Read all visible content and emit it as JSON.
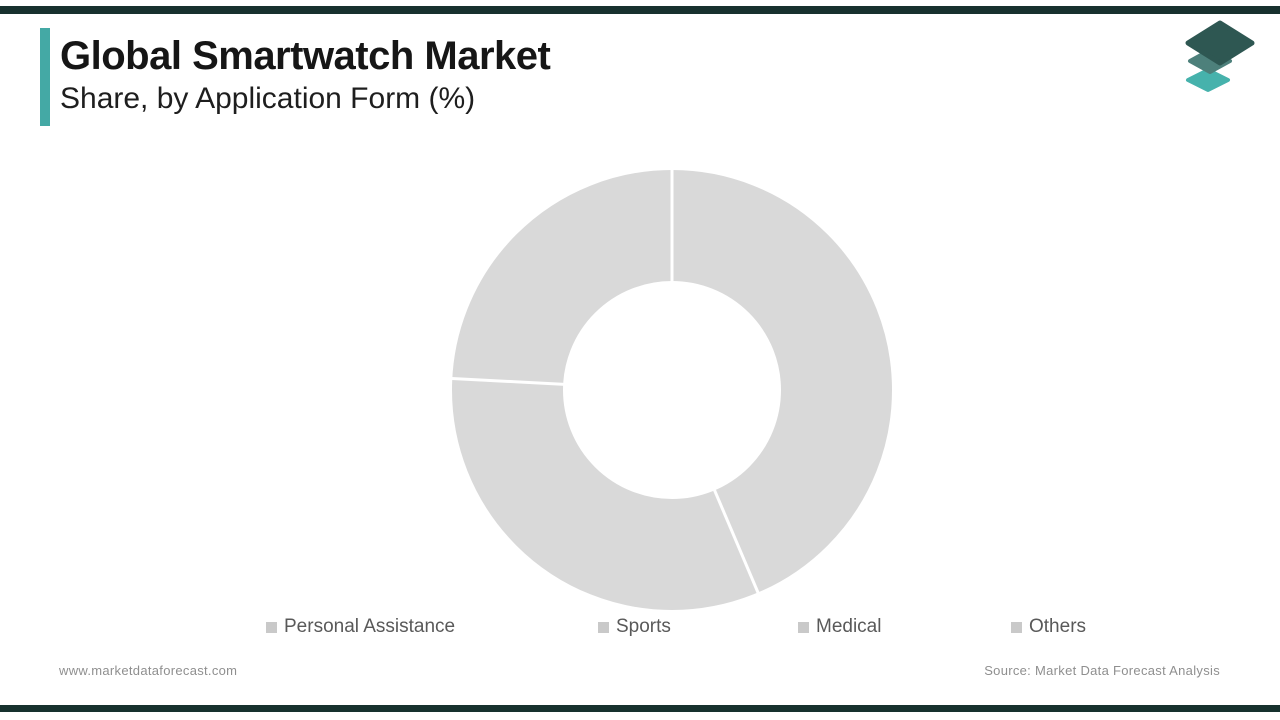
{
  "header": {
    "title": "Global Smartwatch Market",
    "subtitle": "Share, by Application Form (%)",
    "accent_color": "#44a9a5"
  },
  "logo": {
    "icon": "layers-diamond-icon",
    "layer_colors": [
      "#46b2ac",
      "#4d807b",
      "#2e5752"
    ]
  },
  "chart_data": {
    "type": "pie",
    "subtype": "donut",
    "title": "Global Smartwatch Market Share, by Application Form (%)",
    "legend_position": "bottom",
    "values_labeled": false,
    "segment_fill": "#d9d9d9",
    "divider_color": "#ffffff",
    "legend": [
      "Personal Assistance",
      "Sports",
      "Medical",
      "Others"
    ],
    "segments": [
      {
        "label": "Personal Assistance",
        "start_deg": 0,
        "end_deg": 157,
        "share_pct_est": 43.6
      },
      {
        "label": "Sports",
        "start_deg": 157,
        "end_deg": 273,
        "share_pct_est": 32.2
      },
      {
        "label": "Medical",
        "start_deg": 273,
        "end_deg": 360,
        "share_pct_est": 24.2
      }
    ],
    "note": "All slices rendered in uniform placeholder gray; no numeric labels shown. Only three divider lines visible (12:00, ~5:15, ~9:10 positions)."
  },
  "footer": {
    "website": "www.marketdataforecast.com",
    "source": "Source: Market Data Forecast Analysis"
  }
}
